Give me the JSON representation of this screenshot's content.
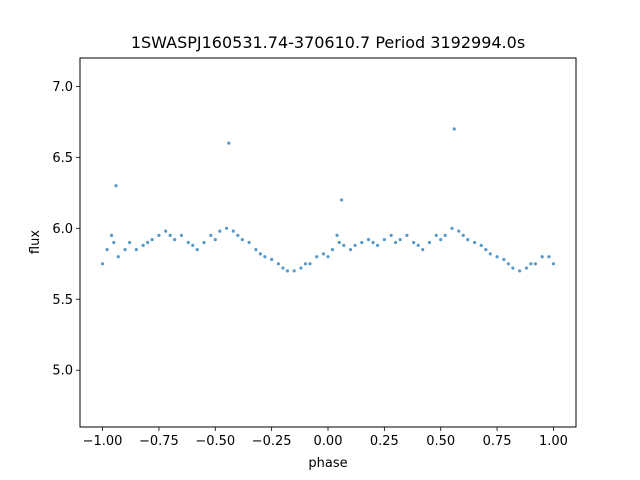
{
  "chart_data": {
    "type": "scatter",
    "title": "1SWASPJ160531.74-370610.7 Period 3192994.0s",
    "xlabel": "phase",
    "ylabel": "flux",
    "xlim": [
      -1.1,
      1.1
    ],
    "ylim": [
      4.6,
      7.2
    ],
    "xticks": [
      -1.0,
      -0.75,
      -0.5,
      -0.25,
      0.0,
      0.25,
      0.5,
      0.75,
      1.0
    ],
    "xtick_labels": [
      "−1.00",
      "−0.75",
      "−0.50",
      "−0.25",
      "0.00",
      "0.25",
      "0.50",
      "0.75",
      "1.00"
    ],
    "yticks": [
      5.0,
      5.5,
      6.0,
      6.5,
      7.0
    ],
    "ytick_labels": [
      "5.0",
      "5.5",
      "6.0",
      "6.5",
      "7.0"
    ],
    "grid": false,
    "legend": "none",
    "marker_color": "#1f77b4",
    "series": [
      {
        "x": [
          -1.0,
          -0.98,
          -0.96,
          -0.95,
          -0.93,
          -0.9,
          -0.88,
          -0.85,
          -0.82,
          -0.8,
          -0.78,
          -0.75,
          -0.72,
          -0.7,
          -0.68,
          -0.65,
          -0.62,
          -0.6,
          -0.58,
          -0.55,
          -0.52,
          -0.5,
          -0.48,
          -0.45,
          -0.42,
          -0.4,
          -0.38,
          -0.35,
          -0.32,
          -0.3,
          -0.28,
          -0.25,
          -0.22,
          -0.2,
          -0.18,
          -0.15,
          -0.12,
          -0.1,
          -0.08,
          -0.05,
          -0.02,
          0.0,
          0.02,
          0.04,
          0.05,
          0.07,
          0.1,
          0.12,
          0.15,
          0.18,
          0.2,
          0.22,
          0.25,
          0.28,
          0.3,
          0.32,
          0.35,
          0.38,
          0.4,
          0.42,
          0.45,
          0.48,
          0.5,
          0.52,
          0.55,
          0.58,
          0.6,
          0.62,
          0.65,
          0.68,
          0.7,
          0.72,
          0.75,
          0.78,
          0.8,
          0.82,
          0.85,
          0.88,
          0.9,
          0.92,
          0.95,
          0.98,
          1.0,
          -0.94,
          -0.44,
          0.06,
          0.56
        ],
        "y": [
          5.75,
          5.85,
          5.95,
          5.9,
          5.8,
          5.85,
          5.9,
          5.85,
          5.88,
          5.9,
          5.92,
          5.95,
          5.98,
          5.95,
          5.92,
          5.95,
          5.9,
          5.88,
          5.85,
          5.9,
          5.95,
          5.92,
          5.98,
          6.0,
          5.98,
          5.95,
          5.92,
          5.9,
          5.85,
          5.82,
          5.8,
          5.78,
          5.75,
          5.72,
          5.7,
          5.7,
          5.72,
          5.75,
          5.75,
          5.8,
          5.82,
          5.8,
          5.85,
          5.95,
          5.9,
          5.88,
          5.85,
          5.88,
          5.9,
          5.92,
          5.9,
          5.88,
          5.92,
          5.95,
          5.9,
          5.92,
          5.95,
          5.9,
          5.88,
          5.85,
          5.9,
          5.95,
          5.92,
          5.95,
          6.0,
          5.98,
          5.95,
          5.92,
          5.9,
          5.88,
          5.85,
          5.82,
          5.8,
          5.78,
          5.75,
          5.72,
          5.7,
          5.72,
          5.75,
          5.75,
          5.8,
          5.8,
          5.75,
          6.3,
          6.6,
          6.2,
          6.7
        ]
      }
    ]
  }
}
